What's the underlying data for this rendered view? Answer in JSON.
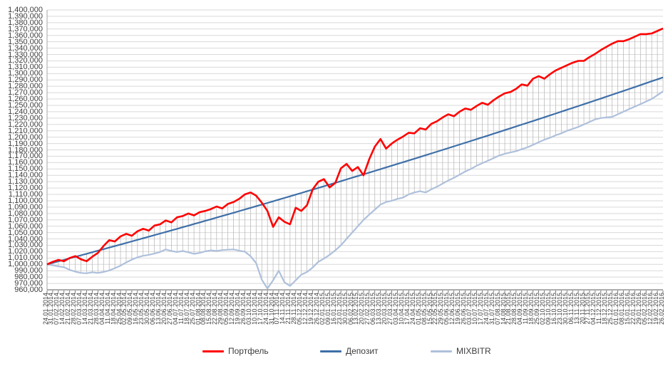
{
  "legend": {
    "position": "bottom-center"
  },
  "chart_data": {
    "type": "line",
    "title": "",
    "xlabel": "",
    "ylabel": "",
    "grid": {
      "horizontal": true,
      "high_low_lines": true
    },
    "legend_position": "bottom",
    "y_axis": {
      "min": 960000,
      "max": 1400000,
      "step": 10000,
      "tick_format": "#,##0"
    },
    "x_tick_label_rotation": 90,
    "categories": [
      "24.01.2014",
      "31.01.2014",
      "07.02.2014",
      "14.02.2014",
      "21.02.2014",
      "28.02.2014",
      "07.03.2014",
      "14.03.2014",
      "21.03.2014",
      "28.03.2014",
      "04.04.2014",
      "11.04.2014",
      "18.04.2014",
      "25.04.2014",
      "02.05.2014",
      "09.05.2014",
      "16.05.2014",
      "23.05.2014",
      "30.05.2014",
      "06.06.2014",
      "13.06.2014",
      "20.06.2014",
      "27.06.2014",
      "04.07.2014",
      "11.07.2014",
      "18.07.2014",
      "25.07.2014",
      "01.08.2014",
      "08.08.2014",
      "15.08.2014",
      "22.08.2014",
      "29.08.2014",
      "05.09.2014",
      "12.09.2014",
      "19.09.2014",
      "26.09.2014",
      "03.10.2014",
      "10.10.2014",
      "17.10.2014",
      "24.10.2014",
      "31.10.2014",
      "07.11.2014",
      "14.11.2014",
      "21.11.2014",
      "28.11.2014",
      "05.12.2014",
      "12.12.2014",
      "19.12.2014",
      "26.12.2014",
      "02.01.2015",
      "09.01.2015",
      "16.01.2015",
      "23.01.2015",
      "30.01.2015",
      "06.02.2015",
      "13.02.2015",
      "20.02.2015",
      "27.02.2015",
      "06.03.2015",
      "13.03.2015",
      "20.03.2015",
      "27.03.2015",
      "03.04.2015",
      "10.04.2015",
      "17.04.2015",
      "24.04.2015",
      "01.05.2015",
      "08.05.2015",
      "15.05.2015",
      "22.05.2015",
      "29.05.2015",
      "05.06.2015",
      "12.06.2015",
      "19.06.2015",
      "26.06.2015",
      "03.07.2015",
      "10.07.2015",
      "17.07.2015",
      "24.07.2015",
      "31.07.2015",
      "07.08.2015",
      "14.08.2015",
      "21.08.2015",
      "28.08.2015",
      "04.09.2015",
      "11.09.2015",
      "18.09.2015",
      "25.09.2015",
      "02.10.2015",
      "09.10.2015",
      "16.10.2015",
      "23.10.2015",
      "30.10.2015",
      "06.11.2015",
      "13.11.2015",
      "20.11.2015",
      "27.11.2015",
      "04.12.2015",
      "11.12.2015",
      "18.12.2015",
      "25.12.2015",
      "01.01.2016",
      "08.01.2016",
      "15.01.2016",
      "22.01.2016",
      "29.01.2016",
      "05.02.2016",
      "12.02.2016",
      "19.02.2016",
      "26.02.2016"
    ],
    "series": [
      {
        "name": "Портфель",
        "color": "#FF0000",
        "values": [
          1000000,
          1004000,
          1007000,
          1005000,
          1010000,
          1013000,
          1008000,
          1005000,
          1012000,
          1018000,
          1029000,
          1038000,
          1036000,
          1044000,
          1048000,
          1045000,
          1052000,
          1056000,
          1053000,
          1061000,
          1063000,
          1069000,
          1066000,
          1074000,
          1076000,
          1080000,
          1077000,
          1082000,
          1084000,
          1087000,
          1091000,
          1088000,
          1095000,
          1098000,
          1103000,
          1110000,
          1113000,
          1108000,
          1097000,
          1084000,
          1059000,
          1074000,
          1067000,
          1063000,
          1089000,
          1084000,
          1093000,
          1118000,
          1130000,
          1134000,
          1121000,
          1128000,
          1151000,
          1158000,
          1147000,
          1153000,
          1140000,
          1165000,
          1185000,
          1197000,
          1182000,
          1190000,
          1196000,
          1201000,
          1207000,
          1206000,
          1214000,
          1212000,
          1221000,
          1225000,
          1231000,
          1236000,
          1233000,
          1240000,
          1245000,
          1243000,
          1249000,
          1254000,
          1251000,
          1258000,
          1264000,
          1269000,
          1271000,
          1276000,
          1283000,
          1281000,
          1292000,
          1296000,
          1292000,
          1299000,
          1305000,
          1309000,
          1313000,
          1317000,
          1320000,
          1320000,
          1326000,
          1331000,
          1337000,
          1342000,
          1347000,
          1351000,
          1351000,
          1354000,
          1358000,
          1362000,
          1362000,
          1363000,
          1367000,
          1371000
        ]
      },
      {
        "name": "Депозит",
        "color": "#3E6FA8",
        "model": "geometric",
        "start": 1000000,
        "end": 1294000
      },
      {
        "name": "MIXBITR",
        "color": "#AEC0DB",
        "values": [
          1000000,
          998500,
          997000,
          995500,
          991500,
          988500,
          986500,
          986000,
          987500,
          986500,
          988000,
          990500,
          994000,
          998000,
          1003000,
          1007500,
          1011000,
          1013500,
          1015000,
          1017000,
          1019500,
          1023500,
          1021000,
          1019500,
          1021000,
          1019000,
          1016500,
          1018000,
          1020500,
          1022000,
          1021000,
          1022500,
          1023000,
          1023500,
          1021500,
          1020000,
          1013000,
          1002000,
          976000,
          962000,
          975000,
          990000,
          972000,
          966000,
          975000,
          984000,
          988000,
          995000,
          1004000,
          1009000,
          1015000,
          1022000,
          1030000,
          1040000,
          1050000,
          1060000,
          1070000,
          1078000,
          1086000,
          1094000,
          1098000,
          1100000,
          1103000,
          1105000,
          1110000,
          1113000,
          1115000,
          1113000,
          1118000,
          1122000,
          1127000,
          1132000,
          1136000,
          1141000,
          1146000,
          1150000,
          1155000,
          1159000,
          1163000,
          1167000,
          1171000,
          1174000,
          1176000,
          1178000,
          1181000,
          1184000,
          1188000,
          1192000,
          1196000,
          1199000,
          1203000,
          1206000,
          1210000,
          1213000,
          1216000,
          1220000,
          1224000,
          1228000,
          1230000,
          1231000,
          1232000,
          1236000,
          1240000,
          1244000,
          1248000,
          1252000,
          1256000,
          1260000,
          1266000,
          1272000
        ]
      }
    ],
    "colors": {
      "gridline": "#D9D9D9",
      "high_low_line": "#B3B3B3",
      "x_axis_line": "#595959",
      "y_axis_line": "#A6A6A6",
      "tick": "#595959",
      "label_text": "#3D3D3D"
    }
  }
}
